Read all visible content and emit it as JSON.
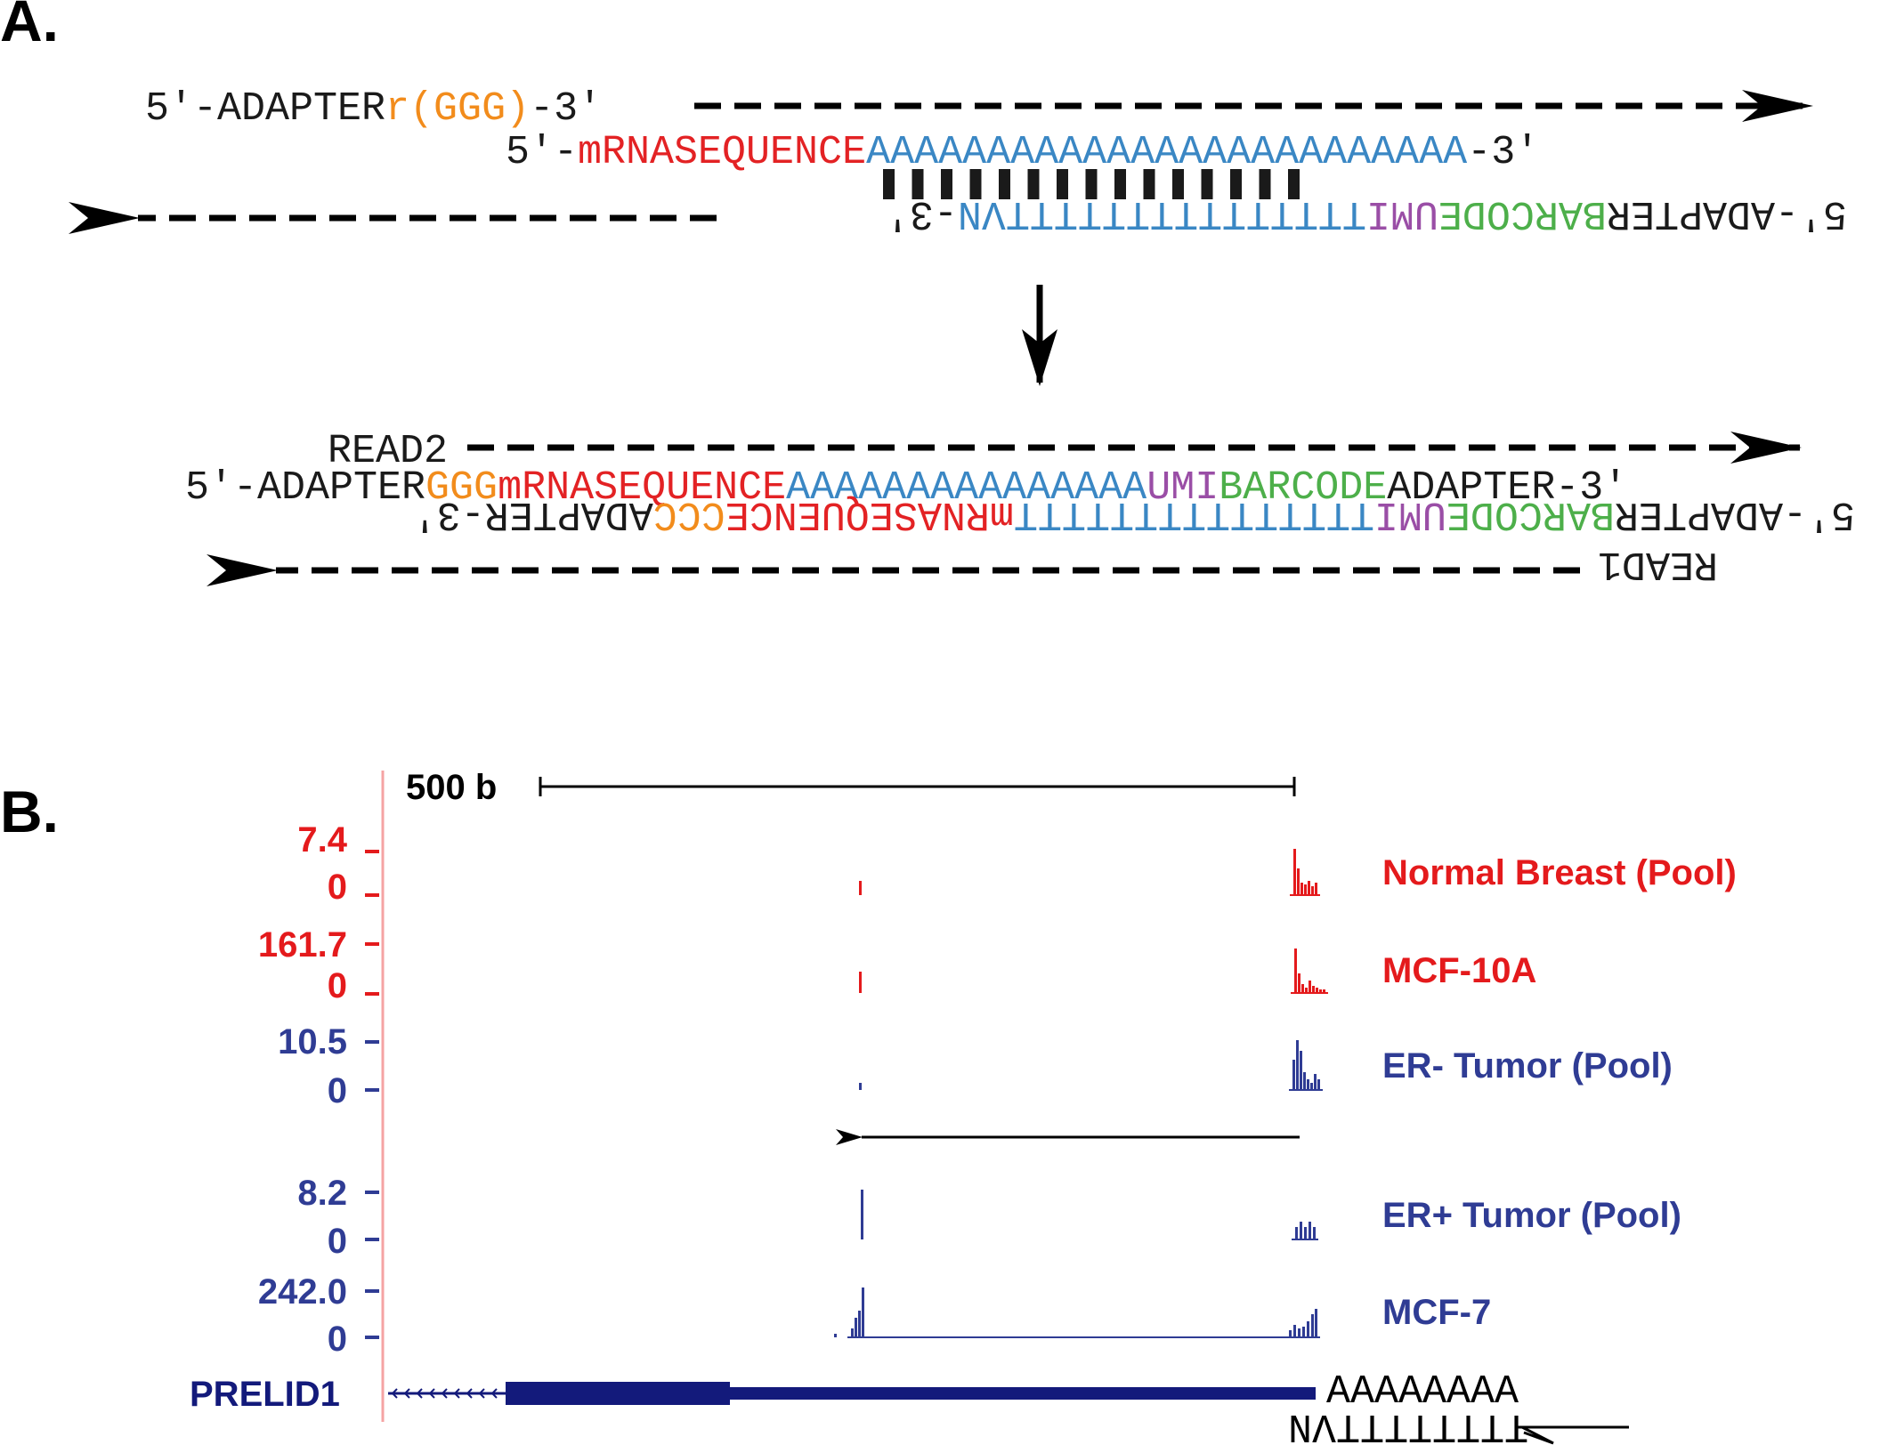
{
  "colors": {
    "black": "#1a1a1a",
    "orange": "#f28c1c",
    "red": "#e32224",
    "blue": "#3a87c4",
    "purple": "#9a4ea6",
    "green": "#4daf4a",
    "track_red": "#e41a1c",
    "track_blue": "#2f3c94",
    "gene_navy": "#131a7b",
    "ruler_pink": "#f5a3a3"
  },
  "panel_a": {
    "label": "A.",
    "row1": {
      "adapter": "5′-ADAPTER",
      "ggg": "r(GGG)",
      "end": "-3'"
    },
    "row2": {
      "start": "5′-",
      "mrna": "mRNASEQUENCE",
      "polya": "AAAAAAAAAAAAAAAAAAAAAAAAA",
      "end": "-3′"
    },
    "row3": {
      "start": "5′-ADAPTER",
      "barcode": "BARCODE",
      "umi": "UMI",
      "polyt": "TTTTTTTTTTTTTTTVN",
      "end": "-3′"
    },
    "row4": {
      "read": "READ2"
    },
    "row5": {
      "adapter": "5′-ADAPTER",
      "ggg": "GGG",
      "mrna": "mRNASEQUENCE",
      "polya": "AAAAAAAAAAAAAAA",
      "umi": "UMI",
      "barcode": "BARCODE",
      "end": "ADAPTER-3′"
    },
    "row6": {
      "start": "5′-ADAPTER",
      "barcode": "BARCODE",
      "umi": "UMI",
      "polyt": "TTTTTTTTTTTTTTT",
      "mrna": "mRNASEQUENCE",
      "ccc": "CCC",
      "end": "ADAPTER-3′"
    },
    "row7": {
      "read": "READ1"
    }
  },
  "panel_b": {
    "label": "B.",
    "scale_label": "500 b",
    "tracks": [
      {
        "name": "Normal Breast (Pool)",
        "max": "7.4",
        "min": "0",
        "color": "track_red"
      },
      {
        "name": "MCF-10A",
        "max": "161.7",
        "min": "0",
        "color": "track_red"
      },
      {
        "name": "ER- Tumor (Pool)",
        "max": "10.5",
        "min": "0",
        "color": "track_blue"
      },
      {
        "name": "ER+ Tumor (Pool)",
        "max": "8.2",
        "min": "0",
        "color": "track_blue"
      },
      {
        "name": "MCF-7",
        "max": "242.0",
        "min": "0",
        "color": "track_blue"
      }
    ],
    "gene": {
      "name": "PRELID1",
      "polya": "AAAAAAAA",
      "polyt": "TTTTTTTTVN"
    }
  }
}
